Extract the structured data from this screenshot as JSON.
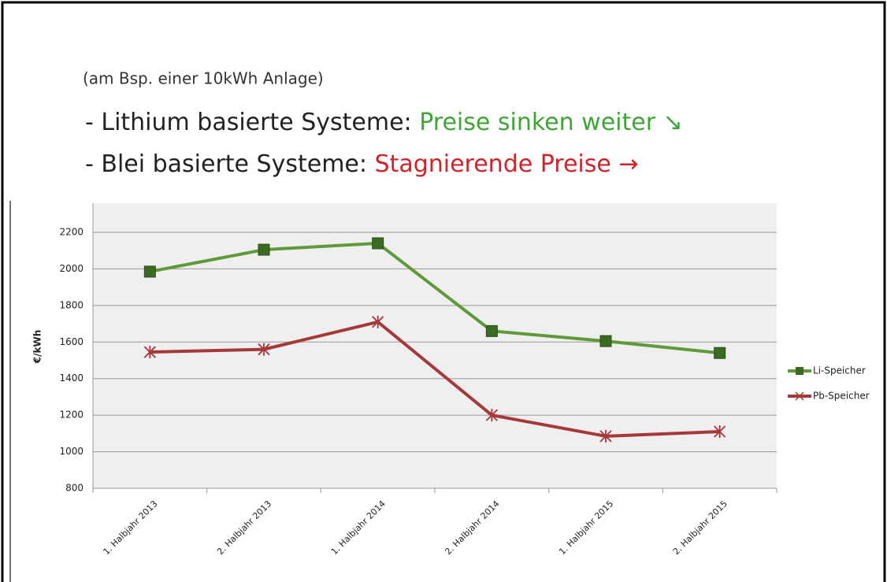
{
  "chart_data": {
    "type": "line",
    "subtitle": "(am Bsp. einer 10kWh Anlage)",
    "lines": [
      {
        "prefix": "- Lithium basierte Systeme: ",
        "highlight": "Preise sinken weiter ↘",
        "color": "#3fa535"
      },
      {
        "prefix": "- Blei basierte Systeme: ",
        "highlight": "Stagnierende Preise →",
        "color": "#d2232a"
      }
    ],
    "ylabel": "€/kWh",
    "categories": [
      "1. Halbjahr 2013",
      "2. Halbjahr 2013",
      "1. Halbjahr 2014",
      "2. Halbjahr 2014",
      "1. Halbjahr 2015",
      "2. Halbjahr 2015"
    ],
    "series": [
      {
        "name": "Li-Speicher",
        "color": "#5f9a3a",
        "marker_color": "#3b6a22",
        "marker": "square",
        "values": [
          1985,
          2105,
          2140,
          1660,
          1605,
          1540
        ]
      },
      {
        "name": "Pb-Speicher",
        "color": "#a6383a",
        "marker_color": "#a6383a",
        "marker": "star",
        "values": [
          1545,
          1560,
          1710,
          1200,
          1085,
          1110
        ]
      }
    ],
    "ylim": [
      800,
      2200
    ],
    "yticks": [
      800,
      1000,
      1200,
      1400,
      1600,
      1800,
      2000,
      2200
    ],
    "grid": true,
    "legend": "right"
  }
}
